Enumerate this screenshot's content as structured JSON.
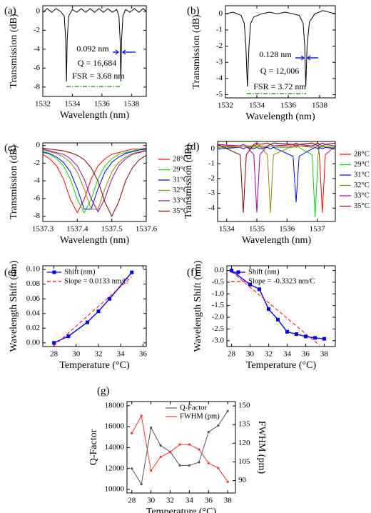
{
  "chart_data": [
    {
      "type": "line",
      "label": "(a)",
      "xlabel": "Wavelength (nm)",
      "ylabel": "Transmission (dB)",
      "xlim": [
        1532,
        1539
      ],
      "xticks": [
        1532,
        1534,
        1536,
        1538
      ],
      "ylim": [
        -9,
        0.6
      ],
      "yticks": [
        0,
        -2,
        -4,
        -6,
        -8
      ],
      "x": [
        1532.0,
        1532.3,
        1532.6,
        1532.9,
        1533.2,
        1533.45,
        1533.55,
        1533.6,
        1533.65,
        1533.75,
        1534.0,
        1534.3,
        1534.6,
        1534.9,
        1535.2,
        1535.5,
        1535.8,
        1536.1,
        1536.4,
        1536.7,
        1537.0,
        1537.15,
        1537.23,
        1537.28,
        1537.33,
        1537.42,
        1537.6,
        1537.9,
        1538.2,
        1538.5,
        1538.8,
        1539.0
      ],
      "series": [
        {
          "color": "#000000",
          "values": [
            -0.1,
            0.3,
            -0.1,
            0.3,
            0.0,
            -0.5,
            -3,
            -7.4,
            -3,
            -0.5,
            0.2,
            -0.1,
            0.3,
            -0.1,
            0.3,
            -0.1,
            0.3,
            -0.1,
            0.3,
            -0.1,
            0.2,
            -0.5,
            -3,
            -7.4,
            -3,
            -0.5,
            0.2,
            -0.1,
            0.3,
            -0.1,
            0.3,
            0.0
          ]
        }
      ],
      "annotations": [
        {
          "text": "0.092 nm",
          "color": "#1a1aff"
        },
        {
          "text": "Q = 16,684",
          "color": "#000000"
        },
        {
          "text": "FSR = 3.68 nm",
          "color": "#3a9a1a"
        }
      ]
    },
    {
      "type": "line",
      "label": "(b)",
      "xlabel": "Wavelength (nm)",
      "ylabel": "Transmission (dB)",
      "xlim": [
        1532,
        1539
      ],
      "xticks": [
        1532,
        1534,
        1536,
        1538
      ],
      "ylim": [
        -5.2,
        0.5
      ],
      "yticks": [
        0,
        -1,
        -2,
        -3,
        -4,
        -5
      ],
      "x": [
        1532.0,
        1532.5,
        1533.0,
        1533.2,
        1533.3,
        1533.4,
        1533.5,
        1533.6,
        1533.8,
        1534.3,
        1534.8,
        1535.3,
        1535.8,
        1536.3,
        1536.7,
        1536.95,
        1537.05,
        1537.12,
        1537.2,
        1537.35,
        1537.7,
        1538.2,
        1538.6,
        1539.0
      ],
      "series": [
        {
          "color": "#000000",
          "values": [
            0.0,
            0.1,
            -0.1,
            -0.6,
            -2.0,
            -4.5,
            -2.0,
            -0.6,
            -0.2,
            0.0,
            0.1,
            0.0,
            0.1,
            0.0,
            -0.1,
            -0.6,
            -2.0,
            -4.5,
            -2.0,
            -0.5,
            0.0,
            0.2,
            0.1,
            0.0
          ]
        }
      ],
      "annotations": [
        {
          "text": "0.128 nm",
          "color": "#1a1aff"
        },
        {
          "text": "Q = 12,006",
          "color": "#000000"
        },
        {
          "text": "FSR = 3.72 nm",
          "color": "#3a9a1a"
        }
      ]
    },
    {
      "type": "line",
      "label": "(c)",
      "xlabel": "Wavelength (nm)",
      "ylabel": "Transmission (dB)",
      "xlim": [
        1537.3,
        1537.6
      ],
      "xticks": [
        1537.3,
        1537.4,
        1537.5,
        1537.6
      ],
      "ylim": [
        -8.6,
        0.3
      ],
      "yticks": [
        0,
        -2,
        -4,
        -6,
        -8
      ],
      "legend": "right-outside",
      "x": [
        1537.3,
        1537.32,
        1537.34,
        1537.36,
        1537.38,
        1537.4,
        1537.42,
        1537.44,
        1537.46,
        1537.48,
        1537.5,
        1537.52,
        1537.54,
        1537.56,
        1537.58,
        1537.6
      ],
      "series": [
        {
          "name": "28°C",
          "color": "#ff0000",
          "values": [
            -1.0,
            -1.5,
            -2.3,
            -3.8,
            -6.1,
            -7.6,
            -6.1,
            -3.8,
            -2.3,
            -1.5,
            -1.0,
            -0.8,
            -0.6,
            -0.4,
            -0.4,
            -0.3
          ]
        },
        {
          "name": "29°C",
          "color": "#00dd00",
          "values": [
            -0.8,
            -1.0,
            -1.5,
            -2.3,
            -3.8,
            -6.1,
            -7.6,
            -6.1,
            -3.8,
            -2.3,
            -1.5,
            -1.0,
            -0.8,
            -0.6,
            -0.4,
            -0.4
          ]
        },
        {
          "name": "31°C",
          "color": "#0000ff",
          "values": [
            -0.7,
            -0.9,
            -1.3,
            -1.9,
            -3.0,
            -4.9,
            -7.2,
            -7.2,
            -4.9,
            -3.0,
            -1.9,
            -1.3,
            -0.9,
            -0.7,
            -0.5,
            -0.4
          ]
        },
        {
          "name": "32°C",
          "color": "#8b8b00",
          "values": [
            -0.5,
            -0.7,
            -0.9,
            -1.3,
            -1.9,
            -3.0,
            -4.9,
            -7.2,
            -7.2,
            -4.9,
            -3.0,
            -1.9,
            -1.3,
            -0.9,
            -0.7,
            -0.5
          ]
        },
        {
          "name": "33°C",
          "color": "#a000a0",
          "values": [
            -0.4,
            -0.6,
            -0.8,
            -1.0,
            -1.5,
            -2.3,
            -3.8,
            -6.0,
            -7.5,
            -6.0,
            -3.8,
            -2.3,
            -1.5,
            -1.0,
            -0.8,
            -0.6
          ]
        },
        {
          "name": "35°C",
          "color": "#800000",
          "values": [
            -0.3,
            -0.4,
            -0.5,
            -0.6,
            -0.8,
            -1.1,
            -1.6,
            -2.5,
            -4.0,
            -6.4,
            -8.0,
            -6.4,
            -4.0,
            -2.5,
            -1.6,
            -1.1
          ]
        }
      ]
    },
    {
      "type": "line",
      "label": "(d)",
      "xlabel": "Wavelength (nm)",
      "ylabel": "Transmission (dB)",
      "xlim": [
        1533.7,
        1537.6
      ],
      "xticks": [
        1534,
        1535,
        1536,
        1537
      ],
      "ylim": [
        -4.9,
        0.5
      ],
      "yticks": [
        0,
        -1,
        -2,
        -3,
        -4
      ],
      "legend": "right-outside",
      "x": [
        1533.7,
        1534.45,
        1534.55,
        1534.65,
        1534.9,
        1535.0,
        1535.1,
        1535.35,
        1535.45,
        1535.55,
        1536.2,
        1536.3,
        1536.4,
        1536.83,
        1536.93,
        1537.03,
        1537.07,
        1537.17,
        1537.27,
        1537.6
      ],
      "series": [
        {
          "name": "28°C",
          "color": "#ff0000",
          "values": [
            0.2,
            0.2,
            0.3,
            0.2,
            0.2,
            0.3,
            0.2,
            0.2,
            0.3,
            0.2,
            0.2,
            0.3,
            0.2,
            0.2,
            0.3,
            0.2,
            -0.4,
            -4.3,
            -0.4,
            0.2
          ]
        },
        {
          "name": "29°C",
          "color": "#00dd00",
          "values": [
            0.1,
            0.1,
            0.2,
            0.1,
            0.1,
            0.2,
            0.1,
            0.1,
            0.2,
            0.1,
            0.1,
            0.2,
            0.1,
            -0.4,
            -4.6,
            -0.4,
            0.1,
            0.2,
            0.1,
            0.1
          ]
        },
        {
          "name": "31°C",
          "color": "#0000ff",
          "values": [
            0.0,
            0.1,
            0.0,
            0.1,
            0.0,
            0.1,
            0.0,
            0.1,
            0.0,
            0.1,
            -0.5,
            -3.6,
            -0.5,
            0.0,
            0.1,
            0.0,
            0.1,
            0.0,
            0.1,
            0.0
          ]
        },
        {
          "name": "32°C",
          "color": "#8b8b00",
          "values": [
            0.2,
            0.1,
            0.2,
            0.1,
            0.2,
            0.1,
            0.2,
            -0.4,
            -4.3,
            -0.4,
            0.2,
            0.1,
            0.2,
            0.1,
            0.2,
            0.1,
            0.2,
            0.1,
            0.2,
            0.1
          ]
        },
        {
          "name": "33°C",
          "color": "#a000a0",
          "values": [
            0.3,
            0.2,
            0.3,
            0.2,
            -0.4,
            -4.3,
            -0.4,
            0.2,
            0.3,
            0.2,
            0.3,
            0.2,
            0.3,
            0.2,
            0.3,
            0.2,
            0.3,
            0.2,
            0.3,
            0.2
          ]
        },
        {
          "name": "35°C",
          "color": "#800000",
          "values": [
            0.3,
            -0.4,
            -4.3,
            -0.4,
            0.3,
            0.4,
            0.3,
            0.4,
            0.3,
            0.4,
            0.3,
            0.4,
            0.3,
            0.4,
            0.3,
            0.4,
            0.3,
            0.4,
            0.3,
            0.4
          ]
        }
      ]
    },
    {
      "type": "line",
      "label": "(e)",
      "xlabel": "Temperature (°C)",
      "ylabel": "Wavelength Shift (nm)",
      "xlim": [
        27,
        36.3
      ],
      "xticks": [
        28,
        30,
        32,
        34,
        36
      ],
      "ylim": [
        -0.005,
        0.105
      ],
      "yticks": [
        {
          "value": 0,
          "label": "0.00"
        },
        {
          "value": 0.02,
          "label": "0.02"
        },
        {
          "value": 0.04,
          "label": "0.04"
        },
        {
          "value": 0.06,
          "label": "0.06"
        },
        {
          "value": 0.08,
          "label": "0.08"
        },
        {
          "value": 0.1,
          "label": "0.10"
        }
      ],
      "legend": "upper left",
      "series": [
        {
          "name": "Shift (nm)",
          "color": "#0000ff",
          "marker": "square",
          "x": [
            28,
            29.3,
            31,
            32,
            33,
            35
          ],
          "values": [
            0,
            0.009,
            0.028,
            0.043,
            0.06,
            0.096
          ]
        },
        {
          "name": "Slope = 0.0133 nm/C",
          "color": "#ff0000",
          "dash": "5,3",
          "x": [
            28,
            35
          ],
          "values": [
            -0.004,
            0.09
          ]
        }
      ]
    },
    {
      "type": "line",
      "label": "(f)",
      "xlabel": "Temperature (°C)",
      "ylabel": "Wavelength Shift (nm)",
      "xlim": [
        27.5,
        39.2
      ],
      "xticks": [
        28,
        30,
        32,
        34,
        36,
        38
      ],
      "ylim": [
        -3.25,
        0.2
      ],
      "yticks": [
        {
          "value": 0,
          "label": "0.0"
        },
        -0.5,
        {
          "value": -1,
          "label": "-1.0"
        },
        -1.5,
        {
          "value": -2,
          "label": "-2.0"
        },
        -2.5,
        {
          "value": -3,
          "label": "-3.0"
        }
      ],
      "legend": "upper left",
      "series": [
        {
          "name": "Shift (nm)",
          "color": "#0000ff",
          "marker": "square",
          "x": [
            28,
            30,
            31,
            32,
            33,
            34,
            35,
            36,
            37,
            38
          ],
          "values": [
            0,
            -0.6,
            -0.8,
            -1.65,
            -2.1,
            -2.62,
            -2.72,
            -2.82,
            -2.88,
            -2.92
          ]
        },
        {
          "name": "Slope = -0.3323 nm/C",
          "color": "#ff0000",
          "dash": "5,3",
          "x": [
            28,
            37.5
          ],
          "values": [
            -0.05,
            -3.2
          ]
        }
      ]
    },
    {
      "type": "line",
      "label": "(g)",
      "xlabel": "Temperature (°C)",
      "ylabel": "Q-Factor",
      "y2label": "FWHM (pm)",
      "xlim": [
        27.5,
        38.8
      ],
      "xticks": [
        28,
        30,
        32,
        34,
        36,
        38
      ],
      "ylim": [
        9660,
        18400
      ],
      "yticks": [
        10000,
        12000,
        14000,
        16000,
        18000
      ],
      "y2lim": [
        80,
        153.5
      ],
      "y2ticks": [
        90,
        105,
        120,
        135,
        150
      ],
      "legend": "upper center",
      "x": [
        28,
        29,
        30,
        31,
        32,
        33,
        34,
        35,
        36,
        37,
        38
      ],
      "series": [
        {
          "name": "Q-Factor",
          "color": "#555555",
          "marker": "dot",
          "values": [
            12000,
            10500,
            15900,
            14200,
            13600,
            12300,
            12300,
            12600,
            15500,
            16100,
            17500
          ]
        },
        {
          "name": "FWHM (pm)",
          "color": "#ff3030",
          "marker": "dot",
          "axis": "y2",
          "values": [
            128,
            142,
            98,
            109,
            113,
            119,
            119,
            115,
            104,
            100,
            89
          ]
        }
      ]
    }
  ]
}
